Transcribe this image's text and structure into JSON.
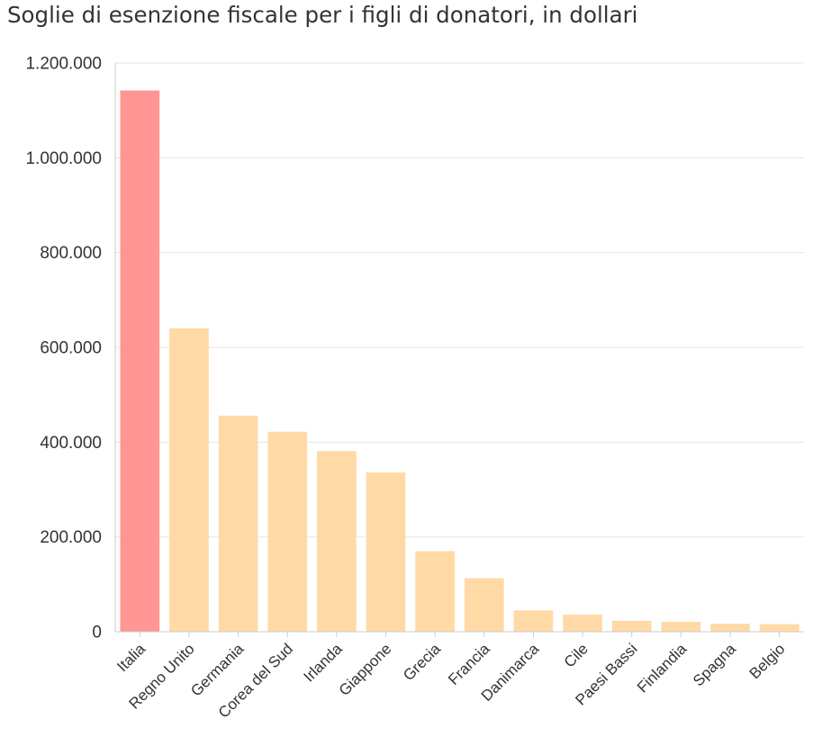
{
  "chart_data": {
    "type": "bar",
    "title": "Soglie di esenzione fiscale per i figli di donatori, in dollari",
    "categories": [
      "Italia",
      "Regno Unito",
      "Germania",
      "Corea del Sud",
      "Irlanda",
      "Giappone",
      "Grecia",
      "Francia",
      "Danimarca",
      "Cile",
      "Paesi Bassi",
      "Finlandia",
      "Spagna",
      "Belgio"
    ],
    "values": [
      1142000,
      640000,
      456000,
      422000,
      381000,
      336000,
      170000,
      113000,
      45000,
      36000,
      23000,
      21000,
      17000,
      16000
    ],
    "highlight_category": "Italia",
    "yticks": [
      0,
      200000,
      400000,
      600000,
      800000,
      1000000,
      1200000
    ],
    "ytick_labels": [
      "0",
      "200.000",
      "400.000",
      "600.000",
      "800.000",
      "1.000.000",
      "1.200.000"
    ],
    "ylim": [
      0,
      1200000
    ],
    "xlabel": "",
    "ylabel": "",
    "grid": true,
    "colors": {
      "highlight": "#ff9693",
      "bar": "#ffdaa6",
      "grid": "#e6e6e6",
      "axis": "#cccccc",
      "text": "#333333"
    }
  }
}
